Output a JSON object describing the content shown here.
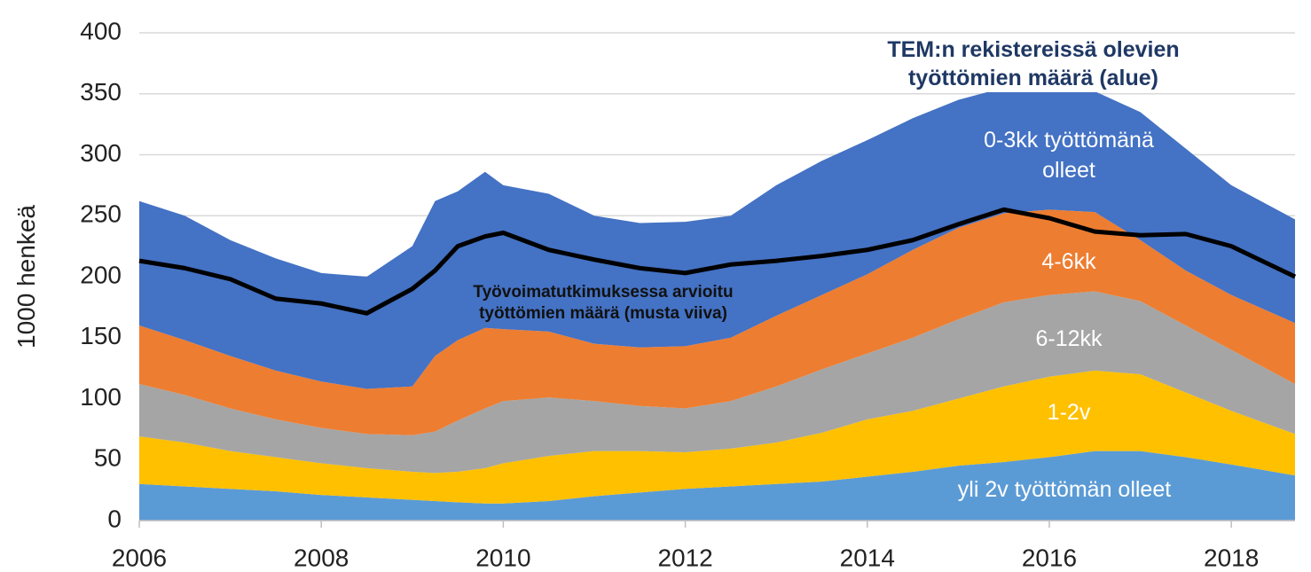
{
  "chart_data": {
    "type": "stacked_area_line",
    "annotations": [
      "TEM:n rekistereissä olevien työttömien määrä (alue)",
      "Työvoimatutkimuksessa arvioitu työttömien määrä (musta viiva)"
    ],
    "ylabel": "1000 henkeä",
    "x": [
      2006,
      2006.5,
      2007,
      2007.5,
      2008,
      2008.5,
      2009,
      2009.25,
      2009.5,
      2009.8,
      2010,
      2010.5,
      2011,
      2011.5,
      2012,
      2012.5,
      2013,
      2013.5,
      2014,
      2014.5,
      2015,
      2015.5,
      2016,
      2016.5,
      2017,
      2017.5,
      2018,
      2018.7
    ],
    "series": [
      {
        "name": "yli 2v työttömän olleet",
        "color": "#5b9bd5",
        "values": [
          30,
          28,
          26,
          24,
          21,
          19,
          17,
          16,
          15,
          14,
          14,
          16,
          20,
          23,
          26,
          28,
          30,
          32,
          36,
          40,
          45,
          48,
          52,
          57,
          57,
          52,
          46,
          37
        ]
      },
      {
        "name": "1-2v",
        "color": "#ffc000",
        "values": [
          39,
          36,
          31,
          28,
          26,
          24,
          23,
          23,
          25,
          29,
          33,
          37,
          37,
          34,
          30,
          31,
          34,
          40,
          47,
          50,
          55,
          62,
          66,
          66,
          63,
          53,
          44,
          34
        ]
      },
      {
        "name": "6-12kk",
        "color": "#a5a5a5",
        "values": [
          43,
          39,
          35,
          31,
          29,
          28,
          30,
          34,
          42,
          49,
          51,
          48,
          41,
          37,
          36,
          39,
          46,
          52,
          54,
          60,
          65,
          69,
          67,
          65,
          60,
          55,
          50,
          41
        ]
      },
      {
        "name": "4-6kk",
        "color": "#ed7d31",
        "values": [
          48,
          45,
          43,
          40,
          38,
          37,
          40,
          62,
          66,
          66,
          59,
          54,
          47,
          48,
          51,
          52,
          58,
          61,
          65,
          72,
          75,
          73,
          70,
          65,
          50,
          45,
          45,
          50
        ]
      },
      {
        "name": "0-3kk työttömänä olleet",
        "color": "#4472c4",
        "values": [
          102,
          102,
          95,
          92,
          89,
          92,
          115,
          127,
          122,
          128,
          118,
          113,
          105,
          102,
          102,
          100,
          107,
          110,
          110,
          108,
          105,
          103,
          100,
          99,
          105,
          100,
          90,
          85
        ]
      },
      {
        "type": "line",
        "color": "#000000",
        "values": [
          213,
          207,
          198,
          182,
          178,
          170,
          190,
          205,
          225,
          233,
          236,
          222,
          214,
          207,
          203,
          210,
          213,
          217,
          222,
          230,
          243,
          255,
          248,
          237,
          234,
          235,
          225,
          200
        ]
      }
    ],
    "xlim": [
      2006,
      2018.7
    ],
    "xticks": [
      2006,
      2008,
      2010,
      2012,
      2014,
      2016,
      2018
    ],
    "ylim": [
      0,
      400
    ],
    "yticks": [
      0,
      50,
      100,
      150,
      200,
      250,
      300,
      350,
      400
    ],
    "grid": true
  }
}
